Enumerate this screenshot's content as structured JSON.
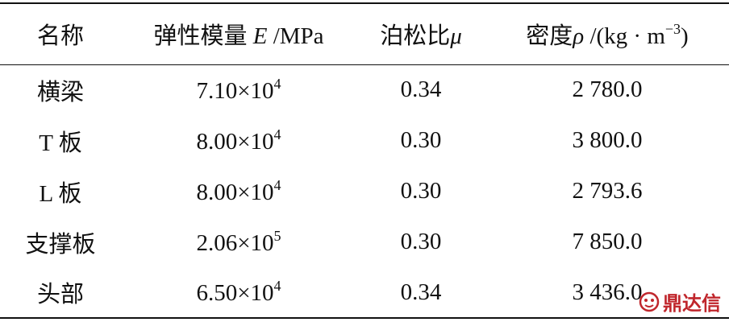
{
  "table": {
    "header": [
      [
        {
          "text": "名称"
        }
      ],
      [
        {
          "text": "弹性模量 "
        },
        {
          "text": "E",
          "italic": true
        },
        {
          "text": " /MPa"
        }
      ],
      [
        {
          "text": "泊松比"
        },
        {
          "text": "μ",
          "italic": true
        }
      ],
      [
        {
          "text": "密度"
        },
        {
          "text": "ρ",
          "italic": true
        },
        {
          "text": " /(kg · m"
        },
        {
          "text": "−3",
          "sup": true
        },
        {
          "text": ")"
        }
      ]
    ],
    "rows": [
      [
        "横梁",
        {
          "base": "7.10×10",
          "exp": "4"
        },
        "0.34",
        "2 780.0"
      ],
      [
        "T 板",
        {
          "base": "8.00×10",
          "exp": "4"
        },
        "0.30",
        "3 800.0"
      ],
      [
        "L 板",
        {
          "base": "8.00×10",
          "exp": "4"
        },
        "0.30",
        "2 793.6"
      ],
      [
        "支撑板",
        {
          "base": "2.06×10",
          "exp": "5"
        },
        "0.30",
        "7 850.0"
      ],
      [
        "头部",
        {
          "base": "6.50×10",
          "exp": "4"
        },
        "0.34",
        "3 436.0"
      ]
    ]
  },
  "watermark": "鼎达信"
}
